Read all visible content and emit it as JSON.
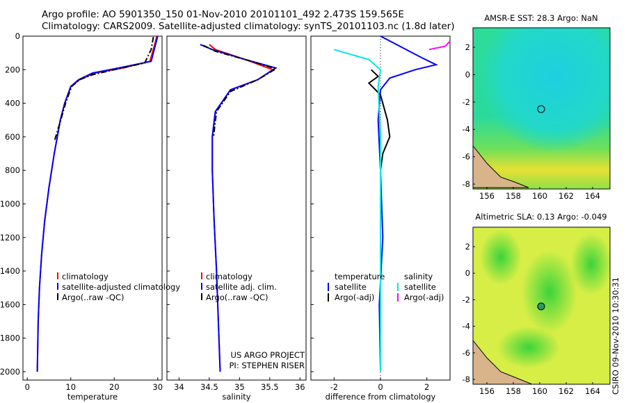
{
  "title": {
    "line1": "Argo profile: AO 5901350_150 01-Nov-2010 20101101_492 2.473S 159.565E",
    "line2": "Climatology: CARS2009. Satellite-adjusted climatology: synTS_20101103.nc (1.8d later)"
  },
  "side_note": "CSIRO 09-Nov-2010 10:30:31",
  "colors": {
    "climatology": "#ff0000",
    "satellite": "#0000ff",
    "argo": "#000000",
    "sal_sat": "#00e5e5",
    "sal_argo": "#ff00ff"
  },
  "chart_data": [
    {
      "type": "line",
      "xlabel": "temperature",
      "ylabel": "",
      "xlim": [
        -1,
        31
      ],
      "ylim": [
        2050,
        0
      ],
      "y_reversed": true,
      "xticks": [
        0,
        10,
        20,
        30
      ],
      "yticks": [
        0,
        200,
        400,
        600,
        800,
        1000,
        1200,
        1400,
        1600,
        1800,
        2000
      ],
      "legend": [
        "climatology",
        "satellite-adjusted climatology",
        "Argo(..raw -QC)"
      ],
      "series": [
        {
          "name": "climatology",
          "x": [
            29.8,
            29.2,
            28.2,
            22.0,
            15.5,
            12.0,
            10.0,
            8.6,
            7.6,
            6.2,
            5.0,
            4.0,
            3.3,
            2.8,
            2.5,
            2.3
          ],
          "y": [
            0,
            60,
            150,
            190,
            220,
            260,
            300,
            400,
            500,
            700,
            900,
            1100,
            1300,
            1500,
            1700,
            2000
          ]
        },
        {
          "name": "satellite-adjusted climatology",
          "x": [
            30.0,
            29.4,
            28.5,
            21.0,
            15.0,
            11.8,
            10.0,
            8.6,
            7.6,
            6.2,
            5.0,
            4.0,
            3.3,
            2.8,
            2.5,
            2.3
          ],
          "y": [
            0,
            60,
            150,
            190,
            220,
            260,
            300,
            400,
            500,
            700,
            900,
            1100,
            1300,
            1500,
            1700,
            2000
          ]
        },
        {
          "name": "Argo(..raw -QC)",
          "x": [
            29.0,
            28.5,
            27.0,
            20.0,
            15.0,
            12.0,
            10.2,
            8.8,
            7.7,
            6.3
          ],
          "y": [
            5,
            80,
            160,
            200,
            230,
            260,
            300,
            400,
            500,
            620
          ]
        }
      ]
    },
    {
      "type": "line",
      "xlabel": "salinity",
      "ylabel": "",
      "xlim": [
        33.8,
        36.1
      ],
      "ylim": [
        2050,
        0
      ],
      "y_reversed": true,
      "xticks": [
        34,
        34.5,
        35,
        35.5,
        36
      ],
      "legend": [
        "climatology",
        "satellite adj. clim.",
        "Argo(..raw -QC)"
      ],
      "annotation": [
        "US ARGO PROJECT",
        "PI: STEPHEN RISER"
      ],
      "series": [
        {
          "name": "climatology",
          "x": [
            34.5,
            34.6,
            35.1,
            35.55,
            35.3,
            34.85,
            34.6,
            34.55,
            34.55,
            34.58,
            34.62,
            34.65,
            34.68
          ],
          "y": [
            50,
            80,
            140,
            200,
            260,
            320,
            450,
            600,
            800,
            1100,
            1400,
            1700,
            2000
          ]
        },
        {
          "name": "satellite adj. clim.",
          "x": [
            34.35,
            34.55,
            35.1,
            35.6,
            35.3,
            34.85,
            34.6,
            34.55,
            34.55,
            34.58,
            34.62,
            34.65,
            34.68
          ],
          "y": [
            50,
            80,
            140,
            190,
            260,
            320,
            450,
            600,
            800,
            1100,
            1400,
            1700,
            2000
          ]
        },
        {
          "name": "Argo(..raw -QC)",
          "x": [
            34.4,
            34.6,
            35.2,
            35.6,
            35.3,
            34.85,
            34.62,
            34.57
          ],
          "y": [
            55,
            90,
            150,
            195,
            260,
            330,
            450,
            600
          ]
        }
      ]
    },
    {
      "type": "line",
      "xlabel": "difference from climatology",
      "ylabel": "",
      "xlim": [
        -3,
        3
      ],
      "ylim": [
        2050,
        0
      ],
      "y_reversed": true,
      "xticks": [
        -2,
        0,
        2
      ],
      "legend": [
        "temperature",
        "satellite",
        "Argo(-adj)",
        "salinity",
        "satellite",
        "Argo(-adj)"
      ],
      "series": [
        {
          "name": "satellite",
          "x": [
            0,
            1.8,
            2.4,
            1.5,
            0.4,
            0.0,
            -0.1,
            0.0,
            0.1,
            -0.05,
            0.0
          ],
          "y": [
            0,
            130,
            170,
            200,
            250,
            320,
            500,
            800,
            1200,
            1600,
            2000
          ]
        },
        {
          "name": "Argo(-adj)",
          "x": [
            -0.4,
            -0.1,
            -0.5,
            0.0,
            0.3,
            0.4,
            0.1,
            0.0
          ],
          "y": [
            200,
            240,
            280,
            350,
            500,
            600,
            700,
            800
          ]
        },
        {
          "name": "satellite",
          "x": [
            -2.0,
            -0.5,
            0.0,
            -0.1,
            0.0,
            0.0,
            0.0
          ],
          "y": [
            80,
            140,
            200,
            300,
            600,
            1200,
            2000
          ]
        },
        {
          "name": "Argo(-adj)",
          "x": [
            2.1,
            2.8,
            3.0
          ],
          "y": [
            80,
            60,
            30
          ]
        }
      ]
    }
  ],
  "maps": [
    {
      "title": "AMSR-E SST: 28.3 Argo: NaN",
      "xticks": [
        "156",
        "158",
        "160",
        "162",
        "164"
      ],
      "yticks": [
        "2",
        "0",
        "-2",
        "-4",
        "-6",
        "-8"
      ]
    },
    {
      "title": "Altimetric SLA: 0.13 Argo: -0.049",
      "xticks": [
        "156",
        "158",
        "160",
        "162",
        "164"
      ],
      "yticks": [
        "2",
        "0",
        "-2",
        "-4",
        "-6",
        "-8"
      ]
    }
  ]
}
